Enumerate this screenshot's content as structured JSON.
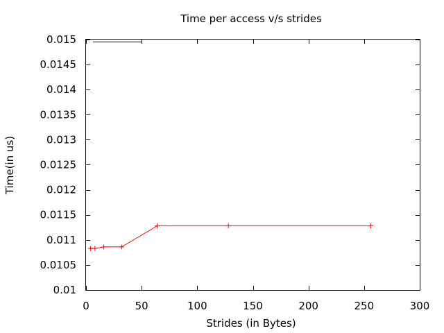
{
  "chart_data": {
    "type": "line",
    "title": "Time per access v/s strides",
    "xlabel": "Strides (in Bytes)",
    "ylabel": "Time(in us)",
    "xlim": [
      0,
      300
    ],
    "ylim": [
      0.01,
      0.015
    ],
    "x_ticks": [
      "0",
      "50",
      "100",
      "150",
      "200",
      "250",
      "300"
    ],
    "y_ticks": [
      "0.01",
      "0.0105",
      "0.011",
      "0.0115",
      "0.012",
      "0.0125",
      "0.013",
      "0.0135",
      "0.014",
      "0.0145",
      "0.015"
    ],
    "x_tick_values": [
      0,
      50,
      100,
      150,
      200,
      250,
      300
    ],
    "y_tick_values": [
      0.01,
      0.0105,
      0.011,
      0.0115,
      0.012,
      0.0125,
      0.013,
      0.0135,
      0.014,
      0.0145,
      0.015
    ],
    "grid": false,
    "legend": "top-left",
    "series": [
      {
        "color": "#ff0000",
        "x": [
          4,
          8,
          16,
          32,
          64,
          128,
          256
        ],
        "y": [
          0.01083,
          0.01083,
          0.01086,
          0.01086,
          0.01128,
          0.01128,
          0.01128
        ]
      }
    ]
  }
}
